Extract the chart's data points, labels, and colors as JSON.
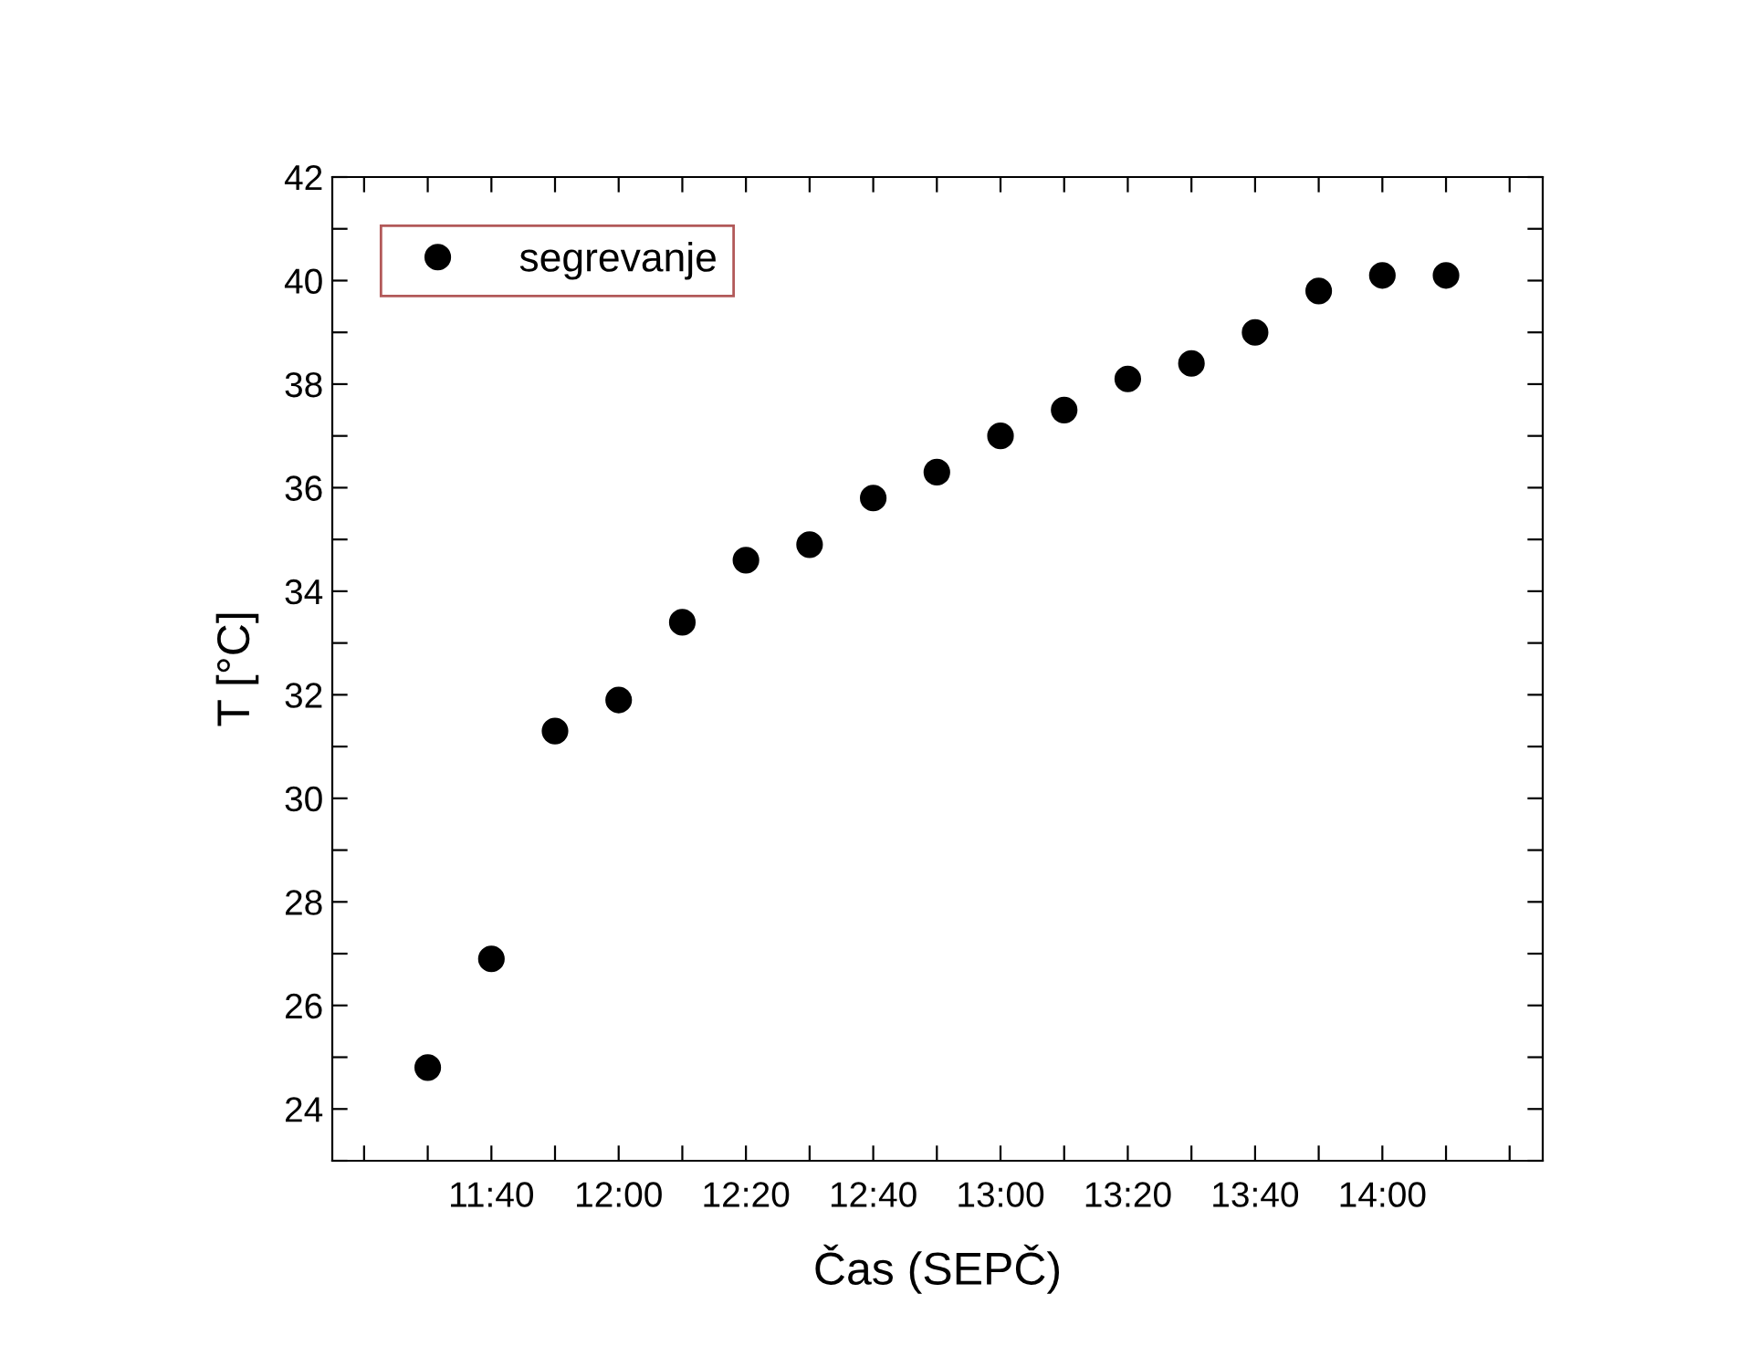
{
  "chart_data": {
    "type": "scatter",
    "xlabel": "Čas (SEPČ)",
    "ylabel": "T [°C]",
    "x": [
      11.5,
      11.6667,
      11.8333,
      12.0,
      12.1667,
      12.3333,
      12.5,
      12.6667,
      12.8333,
      13.0,
      13.1667,
      13.3333,
      13.5,
      13.6667,
      13.8333,
      14.0,
      14.1667
    ],
    "series": [
      {
        "name": "segrevanje",
        "color": "#000000",
        "values": [
          24.8,
          26.9,
          31.3,
          31.9,
          33.4,
          34.6,
          34.9,
          35.8,
          36.3,
          37.0,
          37.5,
          38.1,
          38.4,
          39.0,
          39.8,
          40.1,
          40.1
        ]
      }
    ],
    "marker": "circle",
    "legend": "top left",
    "grid": false,
    "xlim": [
      11.25,
      14.42
    ],
    "ylim": [
      23,
      42
    ],
    "xticks": [
      {
        "value": 11.3333,
        "label": null
      },
      {
        "value": 11.5,
        "label": null
      },
      {
        "value": 11.6667,
        "label": "11:40"
      },
      {
        "value": 11.8333,
        "label": null
      },
      {
        "value": 12.0,
        "label": "12:00"
      },
      {
        "value": 12.1667,
        "label": null
      },
      {
        "value": 12.3333,
        "label": "12:20"
      },
      {
        "value": 12.5,
        "label": null
      },
      {
        "value": 12.6667,
        "label": "12:40"
      },
      {
        "value": 12.8333,
        "label": null
      },
      {
        "value": 13.0,
        "label": "13:00"
      },
      {
        "value": 13.1667,
        "label": null
      },
      {
        "value": 13.3333,
        "label": "13:20"
      },
      {
        "value": 13.5,
        "label": null
      },
      {
        "value": 13.6667,
        "label": "13:40"
      },
      {
        "value": 13.8333,
        "label": null
      },
      {
        "value": 14.0,
        "label": "14:00"
      },
      {
        "value": 14.1667,
        "label": null
      },
      {
        "value": 14.3333,
        "label": null
      }
    ],
    "yticks": [
      {
        "value": 23,
        "label": null
      },
      24,
      {
        "value": 25,
        "label": null
      },
      26,
      {
        "value": 27,
        "label": null
      },
      28,
      {
        "value": 29,
        "label": null
      },
      30,
      {
        "value": 31,
        "label": null
      },
      32,
      {
        "value": 33,
        "label": null
      },
      34,
      {
        "value": 35,
        "label": null
      },
      36,
      {
        "value": 37,
        "label": null
      },
      38,
      {
        "value": 39,
        "label": null
      },
      40,
      {
        "value": 41,
        "label": null
      },
      42
    ]
  }
}
